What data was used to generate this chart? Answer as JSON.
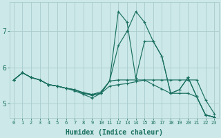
{
  "xlabel": "Humidex (Indice chaleur)",
  "bg_color": "#cce8e8",
  "grid_color": "#aacccc",
  "line_color": "#1a7060",
  "xlim": [
    -0.5,
    23.5
  ],
  "ylim": [
    4.6,
    7.8
  ],
  "xticks": [
    0,
    1,
    2,
    3,
    4,
    5,
    6,
    7,
    8,
    9,
    10,
    11,
    12,
    13,
    14,
    15,
    16,
    17,
    18,
    19,
    20,
    21,
    22,
    23
  ],
  "yticks": [
    5,
    6,
    7
  ],
  "lines": [
    {
      "x": [
        0,
        1,
        2,
        3,
        4,
        5,
        6,
        7,
        8,
        9,
        10,
        11,
        12,
        13,
        14,
        15,
        16,
        17,
        18,
        19,
        20,
        21,
        22,
        23
      ],
      "y": [
        5.65,
        5.85,
        5.72,
        5.65,
        5.52,
        5.48,
        5.42,
        5.38,
        5.28,
        5.22,
        5.28,
        5.62,
        7.55,
        7.25,
        5.7,
        6.72,
        6.72,
        6.3,
        5.28,
        5.38,
        5.72,
        5.18,
        4.68,
        4.62
      ]
    },
    {
      "x": [
        0,
        1,
        2,
        3,
        4,
        5,
        6,
        7,
        8,
        9,
        10,
        11,
        12,
        13,
        14,
        15,
        16,
        17,
        18,
        19,
        20,
        21,
        22,
        23
      ],
      "y": [
        5.65,
        5.85,
        5.72,
        5.65,
        5.52,
        5.48,
        5.42,
        5.38,
        5.28,
        5.25,
        5.32,
        5.62,
        6.6,
        7.0,
        7.55,
        7.25,
        6.72,
        6.3,
        5.28,
        5.38,
        5.72,
        5.18,
        4.68,
        4.62
      ]
    },
    {
      "x": [
        0,
        1,
        2,
        3,
        4,
        5,
        6,
        7,
        8,
        9,
        10,
        11,
        12,
        13,
        14,
        15,
        16,
        17,
        18,
        19,
        20,
        21,
        22,
        23
      ],
      "y": [
        5.65,
        5.85,
        5.72,
        5.65,
        5.52,
        5.48,
        5.42,
        5.38,
        5.3,
        5.25,
        5.28,
        5.62,
        5.65,
        5.65,
        5.65,
        5.65,
        5.65,
        5.65,
        5.65,
        5.65,
        5.65,
        5.65,
        5.1,
        4.72
      ]
    },
    {
      "x": [
        0,
        1,
        2,
        3,
        4,
        5,
        6,
        7,
        8,
        9,
        10,
        11,
        12,
        13,
        14,
        15,
        16,
        17,
        18,
        19,
        20,
        21,
        22,
        23
      ],
      "y": [
        5.65,
        5.85,
        5.72,
        5.65,
        5.52,
        5.48,
        5.42,
        5.35,
        5.25,
        5.15,
        5.28,
        5.48,
        5.52,
        5.55,
        5.6,
        5.65,
        5.52,
        5.4,
        5.28,
        5.28,
        5.28,
        5.18,
        4.68,
        4.62
      ]
    }
  ]
}
